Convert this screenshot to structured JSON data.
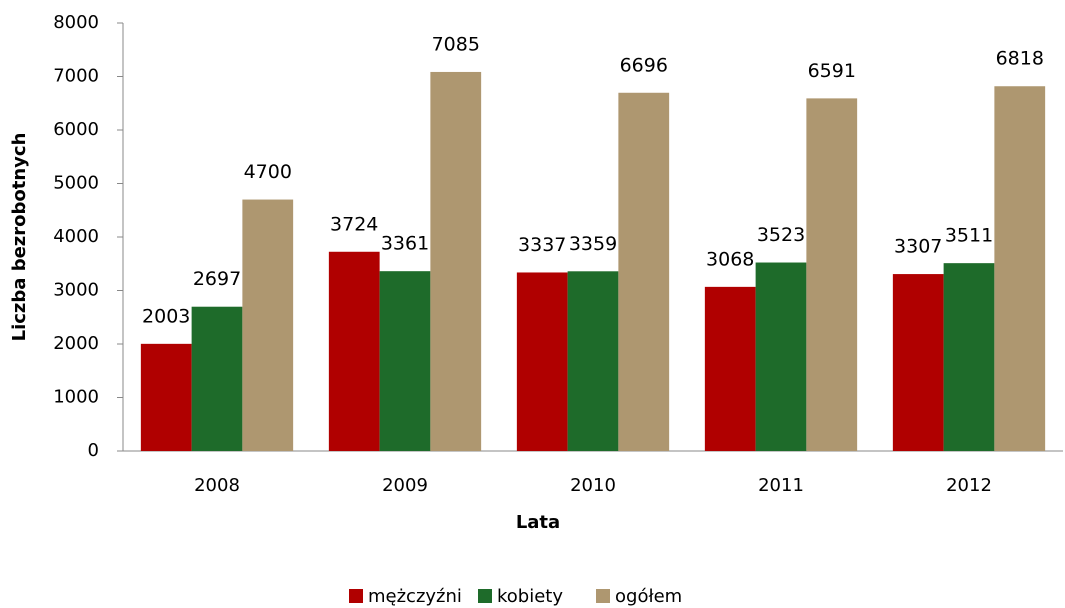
{
  "chart_data": {
    "type": "bar",
    "categories": [
      "2008",
      "2009",
      "2010",
      "2011",
      "2012"
    ],
    "series": [
      {
        "name": "mężczyźni",
        "color": "#b00000",
        "values": [
          2003,
          3724,
          3337,
          3068,
          3307
        ]
      },
      {
        "name": "kobiety",
        "color": "#1e6b2a",
        "values": [
          2697,
          3361,
          3359,
          3523,
          3511
        ]
      },
      {
        "name": "ogółem",
        "color": "#ae9770",
        "values": [
          4700,
          7085,
          6696,
          6591,
          6818
        ]
      }
    ],
    "x_label": "Lata",
    "y_label": "Liczba bezrobotnych",
    "ylim": [
      0,
      8000
    ],
    "yticks": [
      0,
      1000,
      2000,
      3000,
      4000,
      5000,
      6000,
      7000,
      8000
    ],
    "grid": false,
    "legend": "bottom"
  }
}
